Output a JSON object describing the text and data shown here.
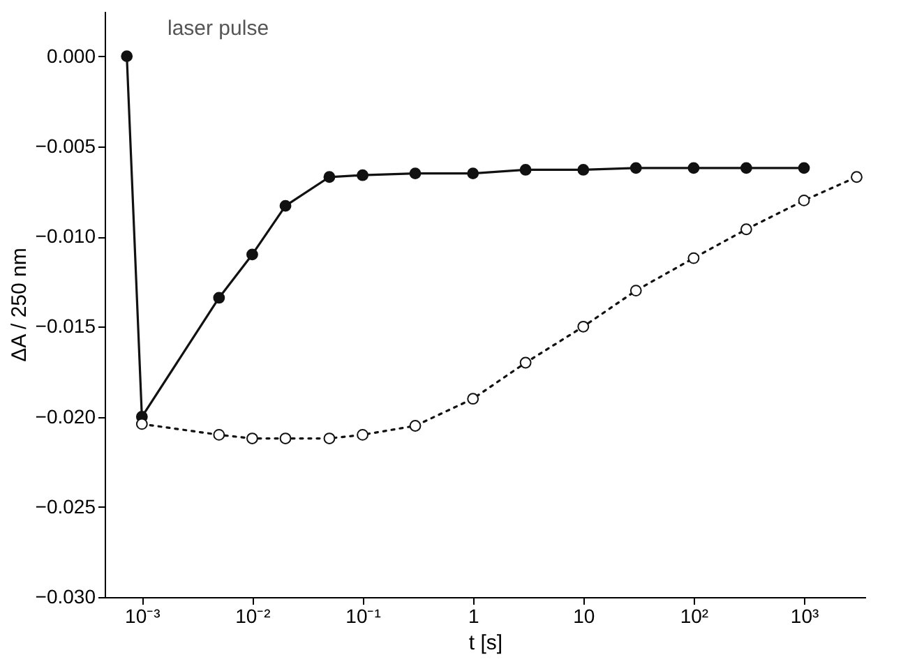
{
  "chart_data": {
    "type": "line",
    "xlabel": "t [s]",
    "ylabel": "ΔA / 250 nm",
    "annotations": [
      "laser pulse"
    ],
    "log": "x",
    "grid": false,
    "marker": "circle",
    "xlim": [
      0.00046,
      3600
    ],
    "xticks": [
      {
        "value": 0.001,
        "label": "10⁻³"
      },
      {
        "value": 0.01,
        "label": "10⁻²"
      },
      {
        "value": 0.1,
        "label": "10⁻¹"
      },
      1,
      10,
      {
        "value": 100,
        "label": "10²"
      },
      {
        "value": 1000,
        "label": "10³"
      }
    ],
    "ylim": [
      -0.03,
      0.0025
    ],
    "yticks": [
      {
        "value": -0.03,
        "label": "−0.030"
      },
      {
        "value": -0.025,
        "label": "−0.025"
      },
      {
        "value": -0.02,
        "label": "−0.020"
      },
      {
        "value": -0.015,
        "label": "−0.015"
      },
      {
        "value": -0.01,
        "label": "−0.010"
      },
      {
        "value": -0.005,
        "label": "−0.005"
      },
      {
        "value": 0,
        "label": "0.000"
      }
    ],
    "series": [
      {
        "color": "#111111",
        "line_style": "solid",
        "x": [
          0.00073,
          0.001,
          0.005,
          0.01,
          0.02,
          0.05,
          0.1,
          0.3,
          1,
          3,
          10,
          30,
          100,
          300,
          1000
        ],
        "values": [
          0.0,
          -0.02,
          -0.0134,
          -0.011,
          -0.0083,
          -0.0067,
          -0.0066,
          -0.0065,
          -0.0065,
          -0.0063,
          -0.0063,
          -0.0062,
          -0.0062,
          -0.0062,
          -0.0062
        ]
      },
      {
        "color": "#111111",
        "line_style": "dotted",
        "x": [
          0.001,
          0.005,
          0.01,
          0.02,
          0.05,
          0.1,
          0.3,
          1,
          3,
          10,
          30,
          100,
          300,
          1000,
          3000
        ],
        "values": [
          -0.0204,
          -0.021,
          -0.0212,
          -0.0212,
          -0.0212,
          -0.021,
          -0.0205,
          -0.019,
          -0.017,
          -0.015,
          -0.013,
          -0.0112,
          -0.0096,
          -0.008,
          -0.0067
        ]
      }
    ]
  }
}
